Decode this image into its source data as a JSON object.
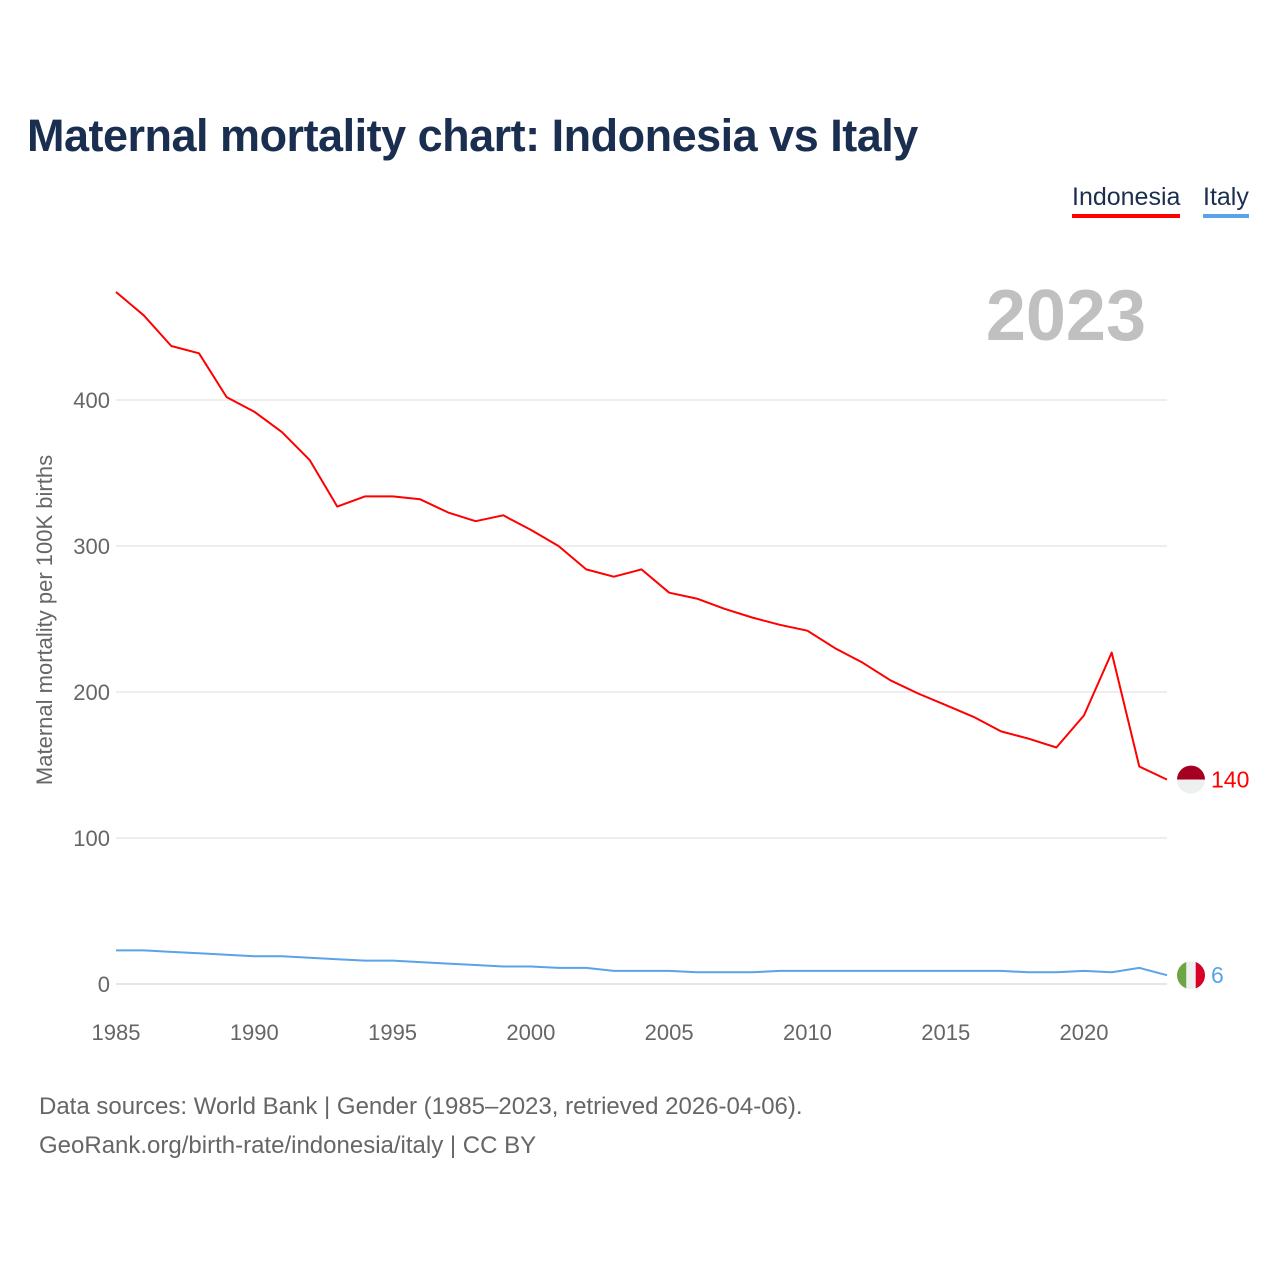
{
  "title": "Maternal mortality chart: Indonesia vs Italy",
  "footer": {
    "line1": "Data sources: World Bank | Gender (1985–2023, retrieved 2026-04-06).",
    "line2": "GeoRank.org/birth-rate/indonesia/italy | CC BY"
  },
  "chart_data": {
    "type": "line",
    "title": "Maternal mortality chart: Indonesia vs Italy",
    "xlabel": "",
    "ylabel": "Maternal mortality per 100K births",
    "year_label": "2023",
    "xlim": [
      1985,
      2023
    ],
    "ylim": [
      0,
      480
    ],
    "x_ticks": [
      1985,
      1990,
      1995,
      2000,
      2005,
      2010,
      2015,
      2020
    ],
    "y_ticks": [
      0,
      100,
      200,
      300,
      400
    ],
    "grid": true,
    "legend_placement": "top-right",
    "x": [
      1985,
      1986,
      1987,
      1988,
      1989,
      1990,
      1991,
      1992,
      1993,
      1994,
      1995,
      1996,
      1997,
      1998,
      1999,
      2000,
      2001,
      2002,
      2003,
      2004,
      2005,
      2006,
      2007,
      2008,
      2009,
      2010,
      2011,
      2012,
      2013,
      2014,
      2015,
      2016,
      2017,
      2018,
      2019,
      2020,
      2021,
      2022,
      2023
    ],
    "series": [
      {
        "name": "Indonesia",
        "color": "#ff0000",
        "end_label": "140",
        "values": [
          474,
          458,
          437,
          432,
          402,
          392,
          378,
          359,
          327,
          334,
          334,
          332,
          323,
          317,
          321,
          311,
          300,
          284,
          279,
          284,
          268,
          264,
          257,
          251,
          246,
          242,
          230,
          220,
          208,
          199,
          191,
          183,
          173,
          168,
          162,
          184,
          227,
          149,
          140
        ]
      },
      {
        "name": "Italy",
        "color": "#5ba3e8",
        "end_label": "6",
        "values": [
          23,
          23,
          22,
          21,
          20,
          19,
          19,
          18,
          17,
          16,
          16,
          15,
          14,
          13,
          12,
          12,
          11,
          11,
          9,
          9,
          9,
          8,
          8,
          8,
          9,
          9,
          9,
          9,
          9,
          9,
          9,
          9,
          9,
          8,
          8,
          9,
          8,
          11,
          6
        ]
      }
    ]
  }
}
